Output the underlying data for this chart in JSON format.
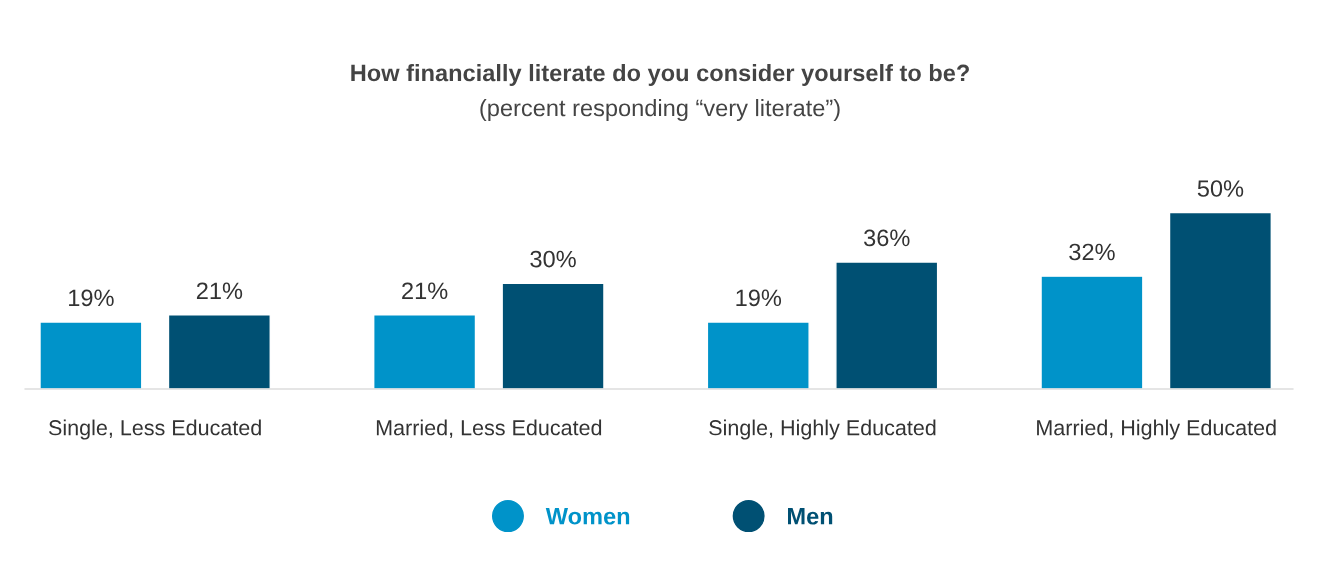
{
  "chart_data": {
    "type": "bar",
    "title": "How financially literate do you consider yourself to be?",
    "subtitle": "(percent responding “very literate”)",
    "categories": [
      "Single, Less Educated",
      "Married, Less Educated",
      "Single, Highly Educated",
      "Married, Highly Educated"
    ],
    "series": [
      {
        "name": "Women",
        "color": "#0093c9",
        "values": [
          19,
          21,
          19,
          32
        ],
        "value_labels": [
          "19%",
          "21%",
          "19%",
          "32%"
        ]
      },
      {
        "name": "Men",
        "color": "#005073",
        "values": [
          21,
          30,
          36,
          50
        ],
        "value_labels": [
          "21%",
          "30%",
          "36%",
          "50%"
        ]
      }
    ],
    "legend": "bottom"
  }
}
